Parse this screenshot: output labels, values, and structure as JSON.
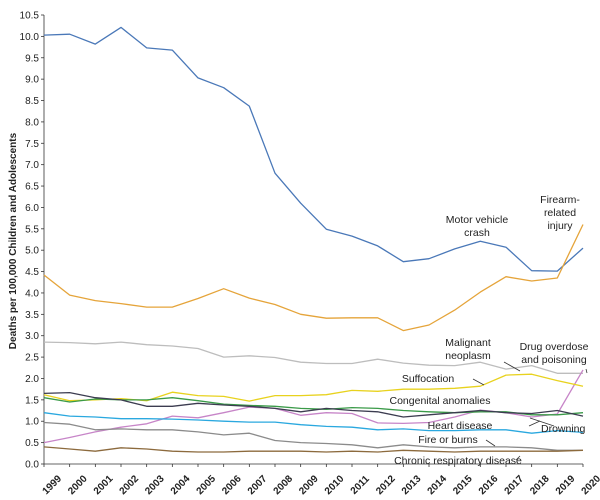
{
  "chart_data": {
    "type": "line",
    "ylabel": "Deaths per 100,000 Children and Adolescents",
    "xlabel": "",
    "ylim": [
      0,
      10.5
    ],
    "y_ticks": [
      "0.0",
      "0.5",
      "1.0",
      "1.5",
      "2.0",
      "2.5",
      "3.0",
      "3.5",
      "4.0",
      "4.5",
      "5.0",
      "5.5",
      "6.0",
      "6.5",
      "7.0",
      "7.5",
      "8.0",
      "8.5",
      "9.0",
      "9.5",
      "10.0",
      "10.5"
    ],
    "x": [
      "1999",
      "2000",
      "2001",
      "2002",
      "2003",
      "2004",
      "2005",
      "2006",
      "2007",
      "2008",
      "2009",
      "2010",
      "2011",
      "2012",
      "2013",
      "2014",
      "2015",
      "2016",
      "2017",
      "2018",
      "2019",
      "2020"
    ],
    "grid": false,
    "legend": "none",
    "series": [
      {
        "name": "Motor vehicle crash",
        "label_lines": [
          "Motor vehicle",
          "crash"
        ],
        "color": "#4a78b8",
        "values": [
          10.03,
          10.05,
          9.82,
          10.21,
          9.73,
          9.68,
          9.03,
          8.8,
          8.37,
          6.8,
          6.1,
          5.49,
          5.33,
          5.1,
          4.73,
          4.8,
          5.03,
          5.21,
          5.07,
          4.52,
          4.51,
          5.05
        ]
      },
      {
        "name": "Firearm-related injury",
        "label_lines": [
          "Firearm-",
          "related",
          "injury"
        ],
        "color": "#e5a43a",
        "values": [
          4.42,
          3.95,
          3.82,
          3.75,
          3.67,
          3.67,
          3.87,
          4.1,
          3.88,
          3.73,
          3.5,
          3.41,
          3.42,
          3.42,
          3.12,
          3.25,
          3.6,
          4.02,
          4.38,
          4.28,
          4.35,
          5.6
        ]
      },
      {
        "name": "Malignant neoplasm",
        "label_lines": [
          "Malignant",
          "neoplasm"
        ],
        "color": "#bdbdbd",
        "values": [
          2.85,
          2.84,
          2.81,
          2.85,
          2.79,
          2.76,
          2.7,
          2.5,
          2.53,
          2.49,
          2.38,
          2.35,
          2.35,
          2.45,
          2.36,
          2.31,
          2.3,
          2.38,
          2.22,
          2.3,
          2.12,
          2.12
        ]
      },
      {
        "name": "Drug overdose and poisoning",
        "label_lines": [
          "Drug overdose",
          "and poisoning"
        ],
        "color": "#c785c8",
        "values": [
          0.5,
          0.62,
          0.75,
          0.86,
          0.94,
          1.12,
          1.08,
          1.2,
          1.33,
          1.3,
          1.14,
          1.2,
          1.18,
          0.96,
          0.95,
          0.97,
          1.1,
          1.26,
          1.2,
          1.1,
          1.17,
          2.2
        ]
      },
      {
        "name": "Suffocation",
        "label_lines": [
          "Suffocation"
        ],
        "color": "#e8d21e",
        "values": [
          1.62,
          1.48,
          1.5,
          1.53,
          1.48,
          1.68,
          1.6,
          1.58,
          1.47,
          1.6,
          1.6,
          1.62,
          1.72,
          1.7,
          1.75,
          1.75,
          1.77,
          1.82,
          2.08,
          2.1,
          1.95,
          1.82
        ]
      },
      {
        "name": "Congenital anomalies",
        "label_lines": [
          "Congenital anomalies"
        ],
        "color": "#3a9a48",
        "values": [
          1.55,
          1.45,
          1.52,
          1.5,
          1.5,
          1.55,
          1.48,
          1.4,
          1.37,
          1.35,
          1.3,
          1.28,
          1.32,
          1.3,
          1.25,
          1.22,
          1.2,
          1.22,
          1.22,
          1.15,
          1.15,
          1.2
        ]
      },
      {
        "name": "Drowning",
        "label_lines": [
          "Drowning"
        ],
        "color": "#3c3c50",
        "values": [
          1.65,
          1.67,
          1.55,
          1.5,
          1.35,
          1.35,
          1.42,
          1.38,
          1.35,
          1.3,
          1.22,
          1.3,
          1.25,
          1.22,
          1.1,
          1.15,
          1.2,
          1.25,
          1.2,
          1.18,
          1.25,
          1.12
        ]
      },
      {
        "name": "Heart disease",
        "label_lines": [
          "Heart disease"
        ],
        "color": "#2aa8df",
        "values": [
          1.2,
          1.12,
          1.1,
          1.06,
          1.06,
          1.05,
          1.03,
          1.0,
          0.98,
          0.98,
          0.92,
          0.88,
          0.86,
          0.8,
          0.82,
          0.78,
          0.78,
          0.8,
          0.8,
          0.72,
          0.78,
          0.74
        ]
      },
      {
        "name": "Fire or burns",
        "label_lines": [
          "Fire or burns"
        ],
        "color": "#8b8b8b",
        "values": [
          0.97,
          0.93,
          0.8,
          0.82,
          0.8,
          0.8,
          0.75,
          0.68,
          0.72,
          0.55,
          0.5,
          0.48,
          0.45,
          0.38,
          0.45,
          0.4,
          0.38,
          0.4,
          0.4,
          0.38,
          0.32,
          0.32
        ]
      },
      {
        "name": "Chronic respiratory disease",
        "label_lines": [
          "Chronic respiratory disease"
        ],
        "color": "#8c6a3d",
        "values": [
          0.4,
          0.35,
          0.3,
          0.38,
          0.35,
          0.3,
          0.28,
          0.28,
          0.3,
          0.3,
          0.3,
          0.28,
          0.3,
          0.28,
          0.32,
          0.3,
          0.28,
          0.3,
          0.3,
          0.3,
          0.3,
          0.32
        ]
      }
    ]
  }
}
